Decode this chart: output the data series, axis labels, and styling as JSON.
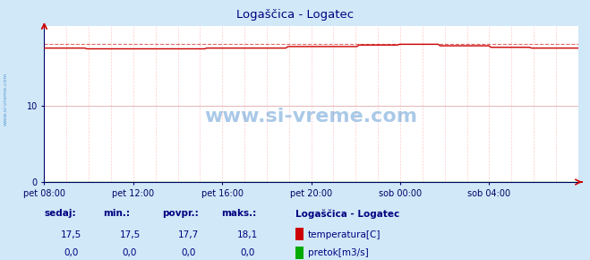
{
  "title": "Logaščica - Logatec",
  "title_color": "#000080",
  "bg_color": "#d0e8f8",
  "plot_bg_color": "#ffffff",
  "grid_color_h": "#ddaaaa",
  "grid_color_v": "#ffcccc",
  "x_labels": [
    "pet 08:00",
    "pet 12:00",
    "pet 16:00",
    "pet 20:00",
    "sob 00:00",
    "sob 04:00"
  ],
  "x_ticks_norm": [
    0.0,
    0.1667,
    0.3333,
    0.5,
    0.6667,
    0.8333
  ],
  "ylim": [
    0,
    20.5
  ],
  "yticks": [
    0,
    10
  ],
  "temp_min": 17.5,
  "temp_max": 18.1,
  "temp_avg": 17.7,
  "temp_current": 17.5,
  "flow_current": 0.0,
  "flow_min": 0.0,
  "flow_avg": 0.0,
  "flow_max": 0.0,
  "temp_color": "#cc0000",
  "flow_color": "#00aa00",
  "watermark_color": "#4488cc",
  "watermark_text": "www.si-vreme.com",
  "sidebar_text": "www.si-vreme.com",
  "sidebar_color": "#4488cc",
  "legend_title": "Logaščica - Logatec",
  "legend_color": "#000080",
  "table_header": [
    "sedaj:",
    "min.:",
    "povpr.:",
    "maks.:"
  ],
  "table_color": "#000080",
  "label_temp": "temperatura[C]",
  "label_flow": "pretok[m3/s]",
  "n_points": 264,
  "n_vgrid": 24
}
